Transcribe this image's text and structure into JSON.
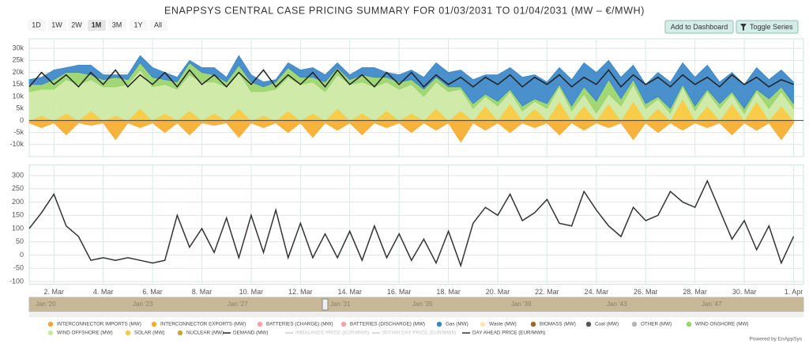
{
  "title": "ENAPPSYS CENTRAL CASE PRICING SUMMARY FOR 01/03/2031 TO 01/04/2031 (MW – €/MWH)",
  "ui": {
    "ranges": [
      "1D",
      "1W",
      "2W",
      "1M",
      "3M",
      "1Y",
      "All"
    ],
    "selected_range": "1M",
    "add_button": "Add to Dashboard",
    "toggle_button": "Toggle Series",
    "credit": "Powered by EnAppSys",
    "navigator_labels": [
      "Jan '20",
      "Jan '23",
      "Jan '27",
      "Jan '31",
      "Jan '35",
      "Jan '39",
      "Jan '43",
      "Jan '47"
    ]
  },
  "chart_data": [
    {
      "type": "stacked_area",
      "xlim": [
        0,
        31.4
      ],
      "ylim": [
        -15000,
        34000
      ],
      "grid": true,
      "yticks": [
        {
          "value": -10000,
          "label": "-10k"
        },
        {
          "value": -5000,
          "label": "-5k"
        },
        0,
        {
          "value": 5000,
          "label": "5k"
        },
        {
          "value": 10000,
          "label": "10k"
        },
        {
          "value": 15000,
          "label": "15k"
        },
        {
          "value": 20000,
          "label": "20k"
        },
        {
          "value": 25000,
          "label": "25k"
        },
        {
          "value": 30000,
          "label": "30k"
        }
      ],
      "x": [
        0,
        0.5,
        1,
        1.5,
        2,
        2.5,
        3,
        3.5,
        4,
        4.5,
        5,
        5.5,
        6,
        6.5,
        7,
        7.5,
        8,
        8.5,
        9,
        9.5,
        10,
        10.5,
        11,
        11.5,
        12,
        12.5,
        13,
        13.5,
        14,
        14.5,
        15,
        15.5,
        16,
        16.5,
        17,
        17.5,
        18,
        18.5,
        19,
        19.5,
        20,
        20.5,
        21,
        21.5,
        22,
        22.5,
        23,
        23.5,
        24,
        24.5,
        25,
        25.5,
        26,
        26.5,
        27,
        27.5,
        28,
        28.5,
        29,
        29.5,
        30,
        30.5,
        31
      ],
      "series": [
        {
          "name": "INTERCONNECTOR IMPORTS (MW)",
          "color": "#f2a541"
        },
        {
          "name": "INTERCONNECTOR EXPORTS (MW)",
          "color": "#f7ab2e",
          "values": [
            -1000,
            -3000,
            -1000,
            -6000,
            -1000,
            -2000,
            -1000,
            -8000,
            -1000,
            -3000,
            -1000,
            -5000,
            -1000,
            -6000,
            -1000,
            -2000,
            -1000,
            -7000,
            -1000,
            -3000,
            -1000,
            -5000,
            -1000,
            -7000,
            -1000,
            -4000,
            -1000,
            -6000,
            -1000,
            -3000,
            -1000,
            -5000,
            -1000,
            -4000,
            -1000,
            -9000,
            -1000,
            -4000,
            -1000,
            -5000,
            -1000,
            -3000,
            -1000,
            -6000,
            -1000,
            -4000,
            -1000,
            -3000,
            -1000,
            -8000,
            -1000,
            -5000,
            -1000,
            -4000,
            -1000,
            -3000,
            -1000,
            -6000,
            -1000,
            -4000,
            -1000,
            -8000,
            -1000
          ]
        },
        {
          "name": "BATTERIES (CHARGE) (MW)",
          "color": "#f4a3a8"
        },
        {
          "name": "BATTERIES (DISCHARGE) (MW)",
          "color": "#f4a3a8"
        },
        {
          "name": "Gas (MW)",
          "color": "#3a87c8",
          "values": [
            2000,
            3000,
            4000,
            2000,
            3000,
            4000,
            2000,
            1000,
            2000,
            3000,
            4000,
            3000,
            2000,
            1000,
            2000,
            3000,
            2000,
            4000,
            3000,
            2000,
            1000,
            2000,
            3000,
            4000,
            3000,
            2000,
            2000,
            3000,
            4000,
            2000,
            3000,
            4000,
            5000,
            6000,
            6000,
            7000,
            10000,
            8000,
            11000,
            9000,
            12000,
            10000,
            9000,
            7000,
            11000,
            10000,
            12000,
            8000,
            9000,
            6000,
            8000,
            10000,
            11000,
            9000,
            12000,
            10000,
            9000,
            8000,
            10000,
            9000,
            8000,
            7000,
            9000
          ]
        },
        {
          "name": "Waste (MW)",
          "color": "#f6e7b4"
        },
        {
          "name": "BIOMASS (MW)",
          "color": "#a0642c"
        },
        {
          "name": "Coal (MW)",
          "color": "#555555"
        },
        {
          "name": "OTHER (MW)",
          "color": "#b3b3b3"
        },
        {
          "name": "WIND ONSHORE (MW)",
          "color": "#9ad46a",
          "values": [
            3000,
            2000,
            4000,
            3000,
            5000,
            2000,
            3000,
            4000,
            2000,
            3000,
            4000,
            2000,
            3000,
            5000,
            4000,
            3000,
            2000,
            3000,
            4000,
            2000,
            3000,
            4000,
            3000,
            2000,
            4000,
            3000,
            2000,
            3000,
            4000,
            2000,
            3000,
            2000,
            3000,
            2000,
            2000,
            1000,
            2000,
            1000,
            2000,
            1000,
            2000,
            1000,
            2000,
            1000,
            2000,
            3000,
            5000,
            6000,
            3000,
            2000,
            2000,
            1000,
            2000,
            1000,
            2000,
            1000,
            2000,
            1000,
            2000,
            1000,
            4000,
            2000,
            2000
          ]
        },
        {
          "name": "WIND OFFSHORE (MW)",
          "color": "#cce9a2",
          "values": [
            12000,
            11000,
            13000,
            14000,
            15000,
            13000,
            14000,
            12000,
            15000,
            16000,
            14000,
            12000,
            13000,
            15000,
            16000,
            13000,
            14000,
            15000,
            12000,
            10000,
            13000,
            14000,
            15000,
            13000,
            12000,
            14000,
            15000,
            13000,
            14000,
            12000,
            13000,
            12000,
            10000,
            11000,
            12000,
            9000,
            5000,
            4000,
            6000,
            5000,
            4000,
            3000,
            5000,
            6000,
            4000,
            5000,
            3000,
            4000,
            6000,
            7000,
            5000,
            4000,
            3000,
            5000,
            4000,
            6000,
            5000,
            4000,
            3000,
            4000,
            5000,
            6000,
            5000
          ]
        },
        {
          "name": "SOLAR (MW)",
          "color": "#f9c93a",
          "values": [
            0,
            2000,
            0,
            3000,
            0,
            4000,
            0,
            2000,
            0,
            5000,
            0,
            3000,
            0,
            4000,
            0,
            3000,
            0,
            5000,
            0,
            2000,
            0,
            4000,
            0,
            3000,
            0,
            5000,
            0,
            3000,
            0,
            4000,
            0,
            3000,
            0,
            5000,
            0,
            4000,
            0,
            6000,
            0,
            7000,
            0,
            5000,
            0,
            8000,
            0,
            6000,
            0,
            7000,
            0,
            8000,
            0,
            5000,
            0,
            9000,
            0,
            6000,
            0,
            7000,
            0,
            8000,
            0,
            6000,
            0
          ]
        },
        {
          "name": "NUCLEAR (MW)",
          "color": "#c9a53a"
        },
        {
          "name": "DEMAND (MW)",
          "color": "#222222",
          "type": "line",
          "values": [
            14000,
            20000,
            15000,
            19000,
            14000,
            20000,
            15000,
            21000,
            14000,
            19000,
            15000,
            20000,
            14000,
            21000,
            15000,
            19000,
            14000,
            20000,
            15000,
            21000,
            14000,
            19000,
            15000,
            20000,
            14000,
            21000,
            15000,
            19000,
            14000,
            20000,
            15000,
            20000,
            14000,
            19000,
            15000,
            18000,
            14000,
            18000,
            15000,
            19000,
            14000,
            18000,
            15000,
            19000,
            14000,
            18000,
            15000,
            21000,
            14000,
            19000,
            15000,
            18000,
            14000,
            19000,
            15000,
            18000,
            14000,
            19000,
            15000,
            18000,
            14000,
            17000,
            15000
          ]
        }
      ]
    },
    {
      "type": "line",
      "xlim": [
        0,
        31.4
      ],
      "ylim": [
        -110,
        340
      ],
      "grid": true,
      "yticks": [
        -100,
        -50,
        0,
        50,
        100,
        150,
        200,
        250,
        300
      ],
      "xticks": [
        {
          "value": 1,
          "label": "2. Mar"
        },
        {
          "value": 3,
          "label": "4. Mar"
        },
        {
          "value": 5,
          "label": "6. Mar"
        },
        {
          "value": 7,
          "label": "8. Mar"
        },
        {
          "value": 9,
          "label": "10. Mar"
        },
        {
          "value": 11,
          "label": "12. Mar"
        },
        {
          "value": 13,
          "label": "14. Mar"
        },
        {
          "value": 15,
          "label": "16. Mar"
        },
        {
          "value": 17,
          "label": "18. Mar"
        },
        {
          "value": 19,
          "label": "20. Mar"
        },
        {
          "value": 21,
          "label": "22. Mar"
        },
        {
          "value": 23,
          "label": "24. Mar"
        },
        {
          "value": 25,
          "label": "26. Mar"
        },
        {
          "value": 27,
          "label": "28. Mar"
        },
        {
          "value": 29,
          "label": "30. Mar"
        },
        {
          "value": 31,
          "label": "1. Apr"
        }
      ],
      "x": [
        0,
        0.5,
        1,
        1.5,
        2,
        2.5,
        3,
        3.5,
        4,
        4.5,
        5,
        5.5,
        6,
        6.5,
        7,
        7.5,
        8,
        8.5,
        9,
        9.5,
        10,
        10.5,
        11,
        11.5,
        12,
        12.5,
        13,
        13.5,
        14,
        14.5,
        15,
        15.5,
        16,
        16.5,
        17,
        17.5,
        18,
        18.5,
        19,
        19.5,
        20,
        20.5,
        21,
        21.5,
        22,
        22.5,
        23,
        23.5,
        24,
        24.5,
        25,
        25.5,
        26,
        26.5,
        27,
        27.5,
        28,
        28.5,
        29,
        29.5,
        30,
        30.5,
        31
      ],
      "series": [
        {
          "name": "IMBALANCE PRICE (EUR/MWh)",
          "color": "#bbbbbb",
          "type": "line",
          "visible": false
        },
        {
          "name": "WITHIN DAY PRICE (EUR/MWh)",
          "color": "#bbbbbb",
          "type": "line",
          "visible": false
        },
        {
          "name": "DAY AHEAD PRICE (EUR/MWh)",
          "color": "#333333",
          "type": "line",
          "values": [
            100,
            160,
            230,
            110,
            70,
            -20,
            -10,
            -20,
            -10,
            -20,
            -30,
            -20,
            150,
            30,
            100,
            10,
            140,
            -10,
            150,
            10,
            170,
            -10,
            120,
            -10,
            80,
            -10,
            90,
            -20,
            110,
            -10,
            80,
            -20,
            60,
            -30,
            90,
            -40,
            120,
            180,
            150,
            230,
            130,
            160,
            210,
            120,
            110,
            240,
            170,
            110,
            70,
            180,
            130,
            150,
            240,
            200,
            180,
            280,
            170,
            60,
            130,
            20,
            110,
            -30,
            70
          ]
        }
      ]
    }
  ]
}
